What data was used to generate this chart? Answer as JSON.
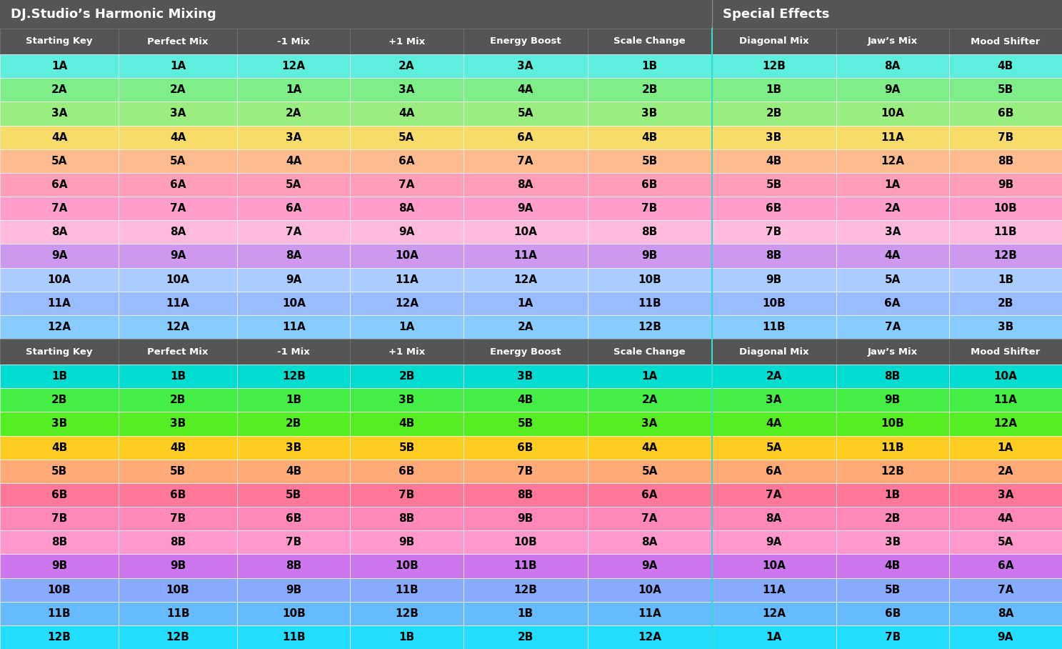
{
  "title_left": "DJ.Studio’s Harmonic Mixing",
  "title_right": "Special Effects",
  "header_bg": "#555555",
  "title_text_color": "#ffffff",
  "columns": [
    "Starting Key",
    "Perfect Mix",
    "-1 Mix",
    "+1 Mix",
    "Energy Boost",
    "Scale Change",
    "Diagonal Mix",
    "Jaw’s Mix",
    "Mood Shifter"
  ],
  "sep_after_col": 6,
  "row_colors_A": [
    "#5EEEDD",
    "#80EE88",
    "#9AEE80",
    "#F8DC6A",
    "#FFBB90",
    "#FF9EBB",
    "#FF9ECC",
    "#FFBBDD",
    "#CC99EE",
    "#AACCFF",
    "#99BBFF",
    "#88CCFF"
  ],
  "row_colors_B": [
    "#00DDD0",
    "#44EE44",
    "#55EE22",
    "#FFCC22",
    "#FFAA77",
    "#FF7799",
    "#FF88BB",
    "#FF99CC",
    "#CC77EE",
    "#88AAFF",
    "#66BBFF",
    "#22DDFF"
  ],
  "rows_A": [
    [
      "1A",
      "1A",
      "12A",
      "2A",
      "3A",
      "1B",
      "12B",
      "8A",
      "4B"
    ],
    [
      "2A",
      "2A",
      "1A",
      "3A",
      "4A",
      "2B",
      "1B",
      "9A",
      "5B"
    ],
    [
      "3A",
      "3A",
      "2A",
      "4A",
      "5A",
      "3B",
      "2B",
      "10A",
      "6B"
    ],
    [
      "4A",
      "4A",
      "3A",
      "5A",
      "6A",
      "4B",
      "3B",
      "11A",
      "7B"
    ],
    [
      "5A",
      "5A",
      "4A",
      "6A",
      "7A",
      "5B",
      "4B",
      "12A",
      "8B"
    ],
    [
      "6A",
      "6A",
      "5A",
      "7A",
      "8A",
      "6B",
      "5B",
      "1A",
      "9B"
    ],
    [
      "7A",
      "7A",
      "6A",
      "8A",
      "9A",
      "7B",
      "6B",
      "2A",
      "10B"
    ],
    [
      "8A",
      "8A",
      "7A",
      "9A",
      "10A",
      "8B",
      "7B",
      "3A",
      "11B"
    ],
    [
      "9A",
      "9A",
      "8A",
      "10A",
      "11A",
      "9B",
      "8B",
      "4A",
      "12B"
    ],
    [
      "10A",
      "10A",
      "9A",
      "11A",
      "12A",
      "10B",
      "9B",
      "5A",
      "1B"
    ],
    [
      "11A",
      "11A",
      "10A",
      "12A",
      "1A",
      "11B",
      "10B",
      "6A",
      "2B"
    ],
    [
      "12A",
      "12A",
      "11A",
      "1A",
      "2A",
      "12B",
      "11B",
      "7A",
      "3B"
    ]
  ],
  "rows_B": [
    [
      "1B",
      "1B",
      "12B",
      "2B",
      "3B",
      "1A",
      "2A",
      "8B",
      "10A"
    ],
    [
      "2B",
      "2B",
      "1B",
      "3B",
      "4B",
      "2A",
      "3A",
      "9B",
      "11A"
    ],
    [
      "3B",
      "3B",
      "2B",
      "4B",
      "5B",
      "3A",
      "4A",
      "10B",
      "12A"
    ],
    [
      "4B",
      "4B",
      "3B",
      "5B",
      "6B",
      "4A",
      "5A",
      "11B",
      "1A"
    ],
    [
      "5B",
      "5B",
      "4B",
      "6B",
      "7B",
      "5A",
      "6A",
      "12B",
      "2A"
    ],
    [
      "6B",
      "6B",
      "5B",
      "7B",
      "8B",
      "6A",
      "7A",
      "1B",
      "3A"
    ],
    [
      "7B",
      "7B",
      "6B",
      "8B",
      "9B",
      "7A",
      "8A",
      "2B",
      "4A"
    ],
    [
      "8B",
      "8B",
      "7B",
      "9B",
      "10B",
      "8A",
      "9A",
      "3B",
      "5A"
    ],
    [
      "9B",
      "9B",
      "8B",
      "10B",
      "11B",
      "9A",
      "10A",
      "4B",
      "6A"
    ],
    [
      "10B",
      "10B",
      "9B",
      "11B",
      "12B",
      "10A",
      "11A",
      "5B",
      "7A"
    ],
    [
      "11B",
      "11B",
      "10B",
      "12B",
      "1B",
      "11A",
      "12A",
      "6B",
      "8A"
    ],
    [
      "12B",
      "12B",
      "11B",
      "1B",
      "2B",
      "12A",
      "1A",
      "7B",
      "9A"
    ]
  ]
}
